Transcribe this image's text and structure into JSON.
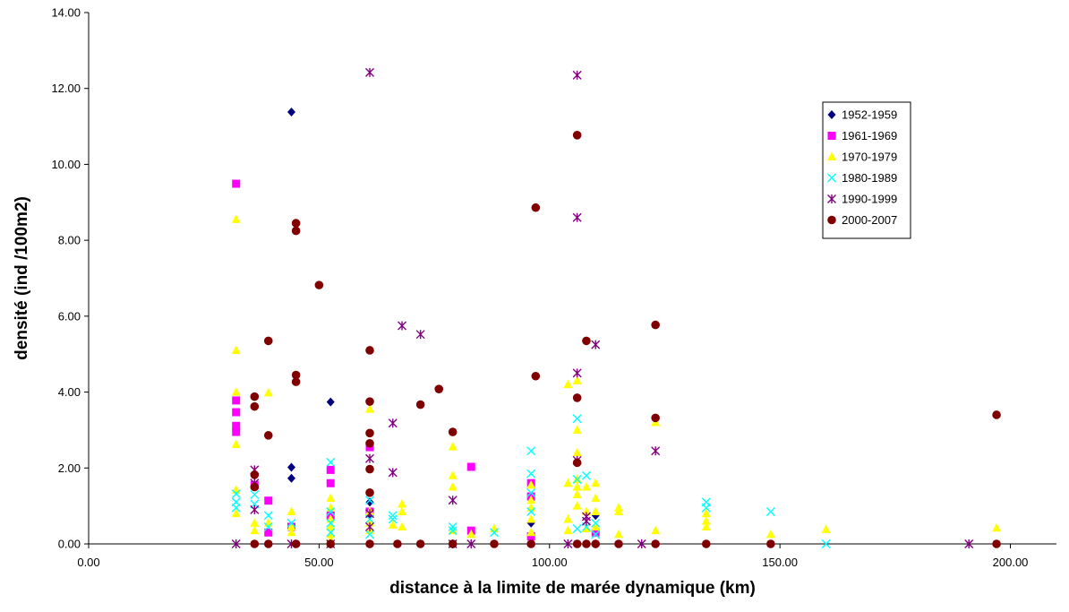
{
  "chart_data": {
    "type": "scatter",
    "title": "",
    "xlabel": "distance à la limite de marée dynamique (km)",
    "ylabel": "densité (ind /100m2)",
    "xlim": [
      0,
      210
    ],
    "ylim": [
      0,
      14
    ],
    "x_ticks": [
      "0.00",
      "50.00",
      "100.00",
      "150.00",
      "200.00"
    ],
    "y_ticks": [
      "0.00",
      "2.00",
      "4.00",
      "6.00",
      "8.00",
      "10.00",
      "12.00",
      "14.00"
    ],
    "grid": false,
    "legend_position": "right",
    "series": [
      {
        "name": "1952-1959",
        "marker": "diamond",
        "color": "#000080",
        "points": [
          [
            44.0,
            11.38
          ],
          [
            44.0,
            2.02
          ],
          [
            44.0,
            1.73
          ],
          [
            52.5,
            3.74
          ],
          [
            61.0,
            1.1
          ],
          [
            61.0,
            0.75
          ],
          [
            61.0,
            0.0
          ],
          [
            96.0,
            0.55
          ],
          [
            110.0,
            0.75
          ],
          [
            110.0,
            0.0
          ]
        ]
      },
      {
        "name": "1961-1969",
        "marker": "square",
        "color": "#ff00ff",
        "points": [
          [
            32.0,
            9.49
          ],
          [
            32.0,
            3.78
          ],
          [
            32.0,
            3.47
          ],
          [
            32.0,
            3.11
          ],
          [
            32.0,
            2.95
          ],
          [
            36.0,
            1.55
          ],
          [
            39.0,
            1.14
          ],
          [
            39.0,
            0.3
          ],
          [
            44.0,
            0.45
          ],
          [
            52.5,
            1.95
          ],
          [
            52.5,
            1.6
          ],
          [
            52.5,
            0.75
          ],
          [
            61.0,
            2.55
          ],
          [
            61.0,
            0.85
          ],
          [
            83.0,
            2.03
          ],
          [
            83.0,
            0.35
          ],
          [
            96.0,
            1.6
          ],
          [
            96.0,
            1.25
          ],
          [
            96.0,
            0.2
          ],
          [
            110.0,
            0.3
          ]
        ]
      },
      {
        "name": "1970-1979",
        "marker": "triangle",
        "color": "#ffff00",
        "points": [
          [
            32.0,
            8.55
          ],
          [
            32.0,
            5.1
          ],
          [
            32.0,
            4.0
          ],
          [
            32.0,
            2.62
          ],
          [
            32.0,
            1.42
          ],
          [
            32.0,
            0.8
          ],
          [
            36.0,
            0.55
          ],
          [
            36.0,
            0.35
          ],
          [
            39.0,
            3.98
          ],
          [
            39.0,
            0.55
          ],
          [
            44.0,
            0.85
          ],
          [
            44.0,
            0.45
          ],
          [
            44.0,
            0.3
          ],
          [
            52.5,
            1.2
          ],
          [
            52.5,
            0.95
          ],
          [
            52.5,
            0.65
          ],
          [
            52.5,
            0.45
          ],
          [
            52.5,
            0.25
          ],
          [
            52.5,
            0.1
          ],
          [
            61.0,
            3.55
          ],
          [
            61.0,
            0.85
          ],
          [
            61.0,
            0.55
          ],
          [
            61.0,
            0.35
          ],
          [
            66.0,
            0.5
          ],
          [
            68.0,
            1.05
          ],
          [
            68.0,
            0.85
          ],
          [
            68.0,
            0.45
          ],
          [
            79.0,
            2.56
          ],
          [
            79.0,
            1.8
          ],
          [
            79.0,
            1.5
          ],
          [
            79.0,
            0.35
          ],
          [
            83.0,
            0.25
          ],
          [
            88.0,
            0.4
          ],
          [
            96.0,
            1.55
          ],
          [
            96.0,
            1.15
          ],
          [
            96.0,
            0.95
          ],
          [
            96.0,
            0.65
          ],
          [
            96.0,
            0.3
          ],
          [
            104.0,
            4.2
          ],
          [
            104.0,
            1.6
          ],
          [
            104.0,
            0.65
          ],
          [
            104.0,
            0.35
          ],
          [
            106.0,
            4.3
          ],
          [
            106.0,
            3.0
          ],
          [
            106.0,
            2.4
          ],
          [
            106.0,
            1.7
          ],
          [
            106.0,
            1.5
          ],
          [
            106.0,
            1.3
          ],
          [
            106.0,
            1.0
          ],
          [
            108.0,
            1.5
          ],
          [
            108.0,
            0.85
          ],
          [
            108.0,
            0.4
          ],
          [
            110.0,
            1.6
          ],
          [
            110.0,
            1.2
          ],
          [
            110.0,
            0.85
          ],
          [
            110.0,
            0.45
          ],
          [
            115.0,
            0.95
          ],
          [
            115.0,
            0.85
          ],
          [
            115.0,
            0.25
          ],
          [
            123.0,
            3.2
          ],
          [
            123.0,
            0.35
          ],
          [
            134.0,
            0.8
          ],
          [
            134.0,
            0.6
          ],
          [
            134.0,
            0.45
          ],
          [
            148.0,
            0.25
          ],
          [
            160.0,
            0.38
          ],
          [
            197.0,
            0.42
          ]
        ]
      },
      {
        "name": "1980-1989",
        "marker": "x",
        "color": "#00ffff",
        "points": [
          [
            32.0,
            1.32
          ],
          [
            32.0,
            1.1
          ],
          [
            32.0,
            0.95
          ],
          [
            36.0,
            1.3
          ],
          [
            36.0,
            1.05
          ],
          [
            39.0,
            0.75
          ],
          [
            39.0,
            0.45
          ],
          [
            44.0,
            0.55
          ],
          [
            52.5,
            2.15
          ],
          [
            52.5,
            0.85
          ],
          [
            52.5,
            0.55
          ],
          [
            52.5,
            0.3
          ],
          [
            61.0,
            1.15
          ],
          [
            61.0,
            0.65
          ],
          [
            61.0,
            0.25
          ],
          [
            66.0,
            0.75
          ],
          [
            66.0,
            0.65
          ],
          [
            79.0,
            0.45
          ],
          [
            79.0,
            0.35
          ],
          [
            88.0,
            0.3
          ],
          [
            96.0,
            2.45
          ],
          [
            96.0,
            1.85
          ],
          [
            96.0,
            1.35
          ],
          [
            96.0,
            0.85
          ],
          [
            106.0,
            3.3
          ],
          [
            106.0,
            1.7
          ],
          [
            106.0,
            0.4
          ],
          [
            108.0,
            1.8
          ],
          [
            108.0,
            0.45
          ],
          [
            110.0,
            0.55
          ],
          [
            110.0,
            0.25
          ],
          [
            134.0,
            1.1
          ],
          [
            134.0,
            0.95
          ],
          [
            148.0,
            0.85
          ],
          [
            160.0,
            0.0
          ]
        ]
      },
      {
        "name": "1990-1999",
        "marker": "star",
        "color": "#800080",
        "points": [
          [
            32.0,
            0.0
          ],
          [
            36.0,
            1.95
          ],
          [
            36.0,
            1.6
          ],
          [
            36.0,
            0.9
          ],
          [
            44.0,
            0.0
          ],
          [
            52.5,
            0.0
          ],
          [
            61.0,
            12.42
          ],
          [
            61.0,
            2.25
          ],
          [
            61.0,
            0.8
          ],
          [
            61.0,
            0.45
          ],
          [
            66.0,
            3.18
          ],
          [
            66.0,
            1.88
          ],
          [
            68.0,
            5.75
          ],
          [
            72.0,
            5.52
          ],
          [
            79.0,
            1.15
          ],
          [
            79.0,
            0.0
          ],
          [
            83.0,
            0.0
          ],
          [
            104.0,
            0.0
          ],
          [
            106.0,
            12.35
          ],
          [
            106.0,
            8.6
          ],
          [
            106.0,
            4.5
          ],
          [
            106.0,
            2.2
          ],
          [
            108.0,
            0.72
          ],
          [
            108.0,
            0.6
          ],
          [
            110.0,
            5.25
          ],
          [
            120.0,
            0.0
          ],
          [
            123.0,
            2.45
          ],
          [
            191.0,
            0.0
          ]
        ]
      },
      {
        "name": "2000-2007",
        "marker": "circle",
        "color": "#800000",
        "points": [
          [
            36.0,
            3.88
          ],
          [
            36.0,
            3.62
          ],
          [
            36.0,
            1.82
          ],
          [
            36.0,
            1.5
          ],
          [
            36.0,
            0.0
          ],
          [
            39.0,
            5.35
          ],
          [
            39.0,
            2.86
          ],
          [
            39.0,
            0.0
          ],
          [
            45.0,
            8.45
          ],
          [
            45.0,
            8.25
          ],
          [
            45.0,
            4.45
          ],
          [
            45.0,
            4.27
          ],
          [
            45.0,
            0.0
          ],
          [
            50.0,
            6.82
          ],
          [
            52.5,
            0.0
          ],
          [
            61.0,
            5.1
          ],
          [
            61.0,
            3.75
          ],
          [
            61.0,
            2.92
          ],
          [
            61.0,
            2.65
          ],
          [
            61.0,
            1.97
          ],
          [
            61.0,
            1.35
          ],
          [
            61.0,
            0.0
          ],
          [
            67.0,
            0.0
          ],
          [
            72.0,
            3.67
          ],
          [
            72.0,
            0.0
          ],
          [
            76.0,
            4.08
          ],
          [
            79.0,
            2.95
          ],
          [
            79.0,
            0.0
          ],
          [
            88.0,
            0.0
          ],
          [
            96.0,
            0.0
          ],
          [
            97.0,
            8.86
          ],
          [
            97.0,
            4.42
          ],
          [
            106.0,
            10.77
          ],
          [
            106.0,
            3.85
          ],
          [
            106.0,
            2.14
          ],
          [
            106.0,
            0.0
          ],
          [
            108.0,
            5.35
          ],
          [
            108.0,
            0.0
          ],
          [
            110.0,
            0.0
          ],
          [
            115.0,
            0.0
          ],
          [
            123.0,
            5.77
          ],
          [
            123.0,
            3.32
          ],
          [
            123.0,
            0.0
          ],
          [
            134.0,
            0.0
          ],
          [
            148.0,
            0.0
          ],
          [
            197.0,
            3.4
          ],
          [
            197.0,
            0.0
          ]
        ]
      }
    ]
  }
}
